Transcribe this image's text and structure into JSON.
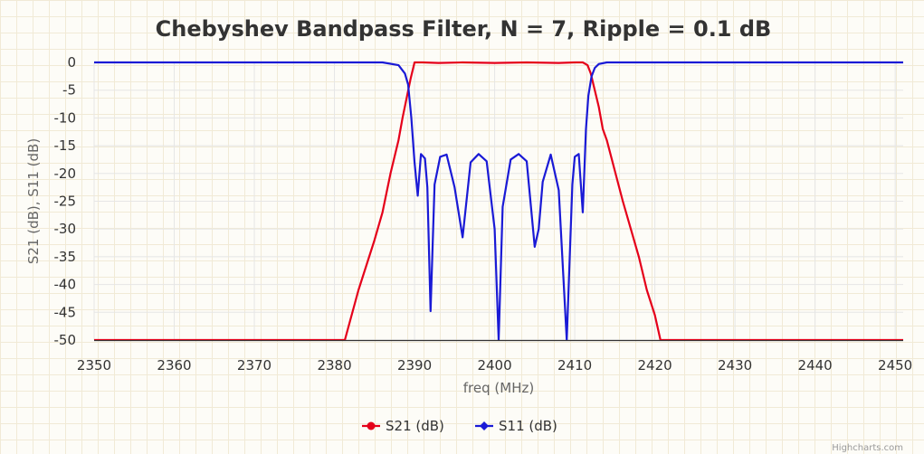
{
  "chart_data": {
    "type": "line",
    "title": "Chebyshev Bandpass Filter, N = 7, Ripple = 0.1 dB",
    "xlabel": "freq (MHz)",
    "ylabel": "S21 (dB), S11 (dB)",
    "xlim": [
      2350,
      2451
    ],
    "ylim": [
      -50,
      0
    ],
    "xticks": [
      2350,
      2360,
      2370,
      2380,
      2390,
      2400,
      2410,
      2420,
      2430,
      2440,
      2450
    ],
    "yticks": [
      0,
      -5,
      -10,
      -15,
      -20,
      -25,
      -30,
      -35,
      -40,
      -45,
      -50
    ],
    "grid": true,
    "legend": "bottom-center",
    "credits": "Highcharts.com",
    "series": [
      {
        "name": "S21 (dB)",
        "color": "#e5001a",
        "x": [
          2350,
          2381.3,
          2383,
          2385,
          2386,
          2387,
          2388,
          2388.5,
          2389,
          2389.5,
          2390,
          2391,
          2393,
          2396,
          2400,
          2404,
          2408,
          2410,
          2411,
          2411.6,
          2412,
          2412.5,
          2413,
          2413.5,
          2414,
          2415,
          2416,
          2417,
          2418,
          2419,
          2420,
          2420.7,
          2451
        ],
        "y": [
          -50,
          -50,
          -41,
          -32,
          -27,
          -20,
          -14,
          -10,
          -6.5,
          -3,
          0,
          0,
          -0.1,
          0,
          -0.1,
          0,
          -0.1,
          0,
          0,
          -0.5,
          -2,
          -5,
          -8,
          -12,
          -14,
          -19.5,
          -25,
          -30,
          -35,
          -41,
          -45.5,
          -50,
          -50
        ]
      },
      {
        "name": "S11 (dB)",
        "color": "#1a1ad6",
        "x": [
          2350,
          2386,
          2388,
          2388.8,
          2389.2,
          2389.6,
          2390,
          2390.4,
          2390.8,
          2391.3,
          2391.6,
          2392,
          2392.5,
          2393.2,
          2394,
          2395,
          2396,
          2397,
          2398,
          2399,
          2400,
          2400.5,
          2401,
          2402,
          2403,
          2404,
          2405,
          2405.5,
          2406,
          2407,
          2408,
          2409,
          2409.7,
          2410,
          2410.5,
          2411,
          2411.4,
          2411.7,
          2412.1,
          2412.5,
          2413,
          2414,
          2416,
          2451
        ],
        "y": [
          0,
          0,
          -0.5,
          -2,
          -4,
          -10,
          -18,
          -24,
          -16.5,
          -17.3,
          -22.5,
          -44.8,
          -22,
          -17,
          -16.6,
          -22.5,
          -31.5,
          -18,
          -16.5,
          -17.8,
          -30,
          -50,
          -26,
          -17.5,
          -16.5,
          -17.8,
          -33.2,
          -30,
          -21.5,
          -16.6,
          -23,
          -50,
          -22,
          -17,
          -16.5,
          -27,
          -12,
          -6,
          -2.5,
          -1,
          -0.3,
          0,
          0,
          0
        ]
      }
    ]
  }
}
